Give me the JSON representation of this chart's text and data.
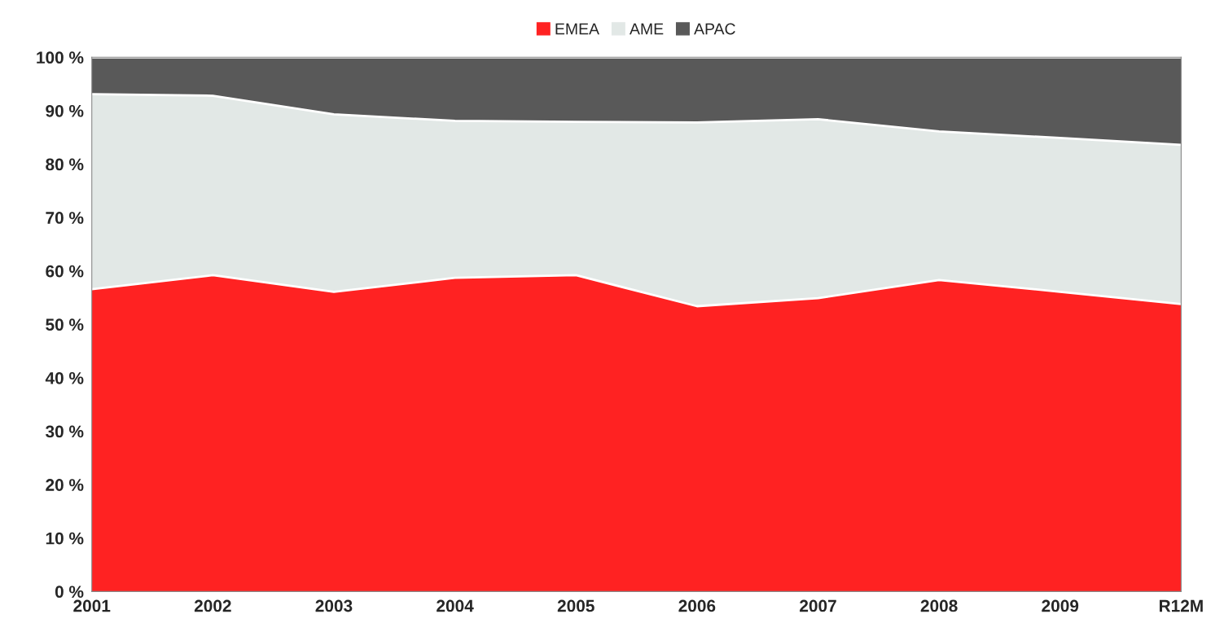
{
  "chart_data": {
    "type": "area",
    "stacked": true,
    "categories": [
      "2001",
      "2002",
      "2003",
      "2004",
      "2005",
      "2006",
      "2007",
      "2008",
      "2009",
      "R12M"
    ],
    "series": [
      {
        "name": "EMEA",
        "color": "#ff2222",
        "values": [
          56.6,
          59.2,
          56.1,
          58.7,
          59.2,
          53.4,
          54.9,
          58.3,
          56.1,
          53.8
        ]
      },
      {
        "name": "AME",
        "color": "#e2e8e6",
        "values": [
          36.5,
          33.6,
          33.2,
          29.4,
          28.7,
          34.4,
          33.5,
          27.8,
          28.8,
          29.8
        ]
      },
      {
        "name": "APAC",
        "color": "#595959",
        "values": [
          6.9,
          7.2,
          10.7,
          11.9,
          12.1,
          12.2,
          11.6,
          13.9,
          15.1,
          16.4
        ]
      }
    ],
    "ylim": [
      0,
      100
    ],
    "yticks": [
      {
        "value": 0,
        "label": "0 %"
      },
      {
        "value": 10,
        "label": "10 %"
      },
      {
        "value": 20,
        "label": "20 %"
      },
      {
        "value": 30,
        "label": "30 %"
      },
      {
        "value": 40,
        "label": "40 %"
      },
      {
        "value": 50,
        "label": "50 %"
      },
      {
        "value": 60,
        "label": "60 %"
      },
      {
        "value": 70,
        "label": "70 %"
      },
      {
        "value": 80,
        "label": "80 %"
      },
      {
        "value": 90,
        "label": "90 %"
      },
      {
        "value": 100,
        "label": "100 %"
      }
    ],
    "legend": "top"
  }
}
